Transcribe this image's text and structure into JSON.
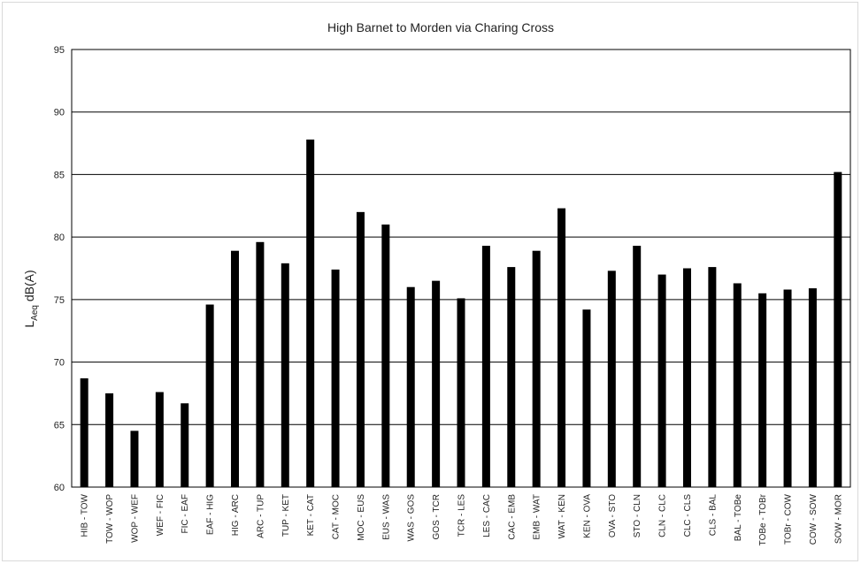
{
  "chart_data": {
    "type": "bar",
    "title": "High Barnet to Morden via Charing Cross",
    "xlabel": "",
    "ylabel": {
      "main": "L",
      "subscript": "Aeq",
      "unit": " dB(A)"
    },
    "ylim": [
      60,
      95
    ],
    "yticks": [
      60,
      65,
      70,
      75,
      80,
      85,
      90,
      95
    ],
    "grid": true,
    "bar_color": "#000000",
    "categories": [
      "HIB - TOW",
      "TOW - WOP",
      "WOP - WEF",
      "WEF - FIC",
      "FIC - EAF",
      "EAF - HIG",
      "HIG - ARC",
      "ARC - TUP",
      "TUP - KET",
      "KET - CAT",
      "CAT - MOC",
      "MOC - EUS",
      "EUS - WAS",
      "WAS - GOS",
      "GOS - TCR",
      "TCR - LES",
      "LES - CAC",
      "CAC - EMB",
      "EMB - WAT",
      "WAT - KEN",
      "KEN - OVA",
      "OVA - STO",
      "STO - CLN",
      "CLN - CLC",
      "CLC - CLS",
      "CLS - BAL",
      "BAL - TOBe",
      "TOBe - TOBr",
      "TOBr - COW",
      "COW - SOW",
      "SOW - MOR"
    ],
    "values": [
      68.7,
      67.5,
      64.5,
      67.6,
      66.7,
      74.6,
      78.9,
      79.6,
      77.9,
      87.8,
      77.4,
      82.0,
      81.0,
      76.0,
      76.5,
      75.1,
      79.3,
      77.6,
      78.9,
      82.3,
      74.2,
      77.3,
      79.3,
      77.0,
      77.5,
      77.6,
      76.3,
      75.5,
      75.8,
      75.9,
      85.2
    ]
  }
}
